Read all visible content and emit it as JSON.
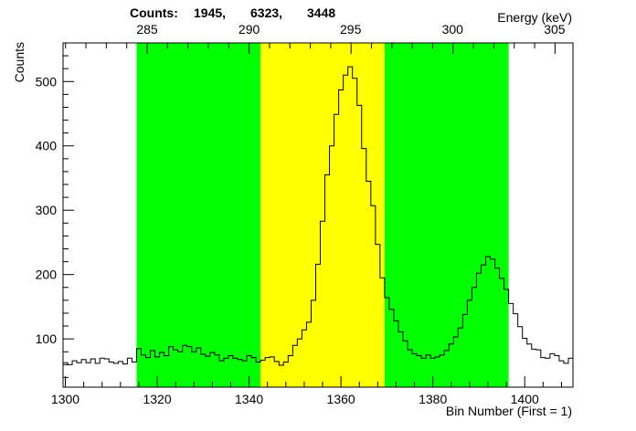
{
  "chart_data": {
    "type": "histogram",
    "title_prefix": "Counts:",
    "counts": [
      "1945,",
      "6323,",
      "3448"
    ],
    "xlabel": "Bin Number (First = 1)",
    "ylabel": "Counts",
    "x2label": "Energy (keV)",
    "xlim": [
      1299.5,
      1410.5
    ],
    "ylim": [
      25,
      560
    ],
    "x_ticks": [
      "1300",
      "1320",
      "1340",
      "1360",
      "1380",
      "1400"
    ],
    "y_ticks": [
      "100",
      "200",
      "300",
      "400",
      "500"
    ],
    "energy_ticks": [
      "285",
      "290",
      "295",
      "300",
      "305"
    ],
    "energy_tick_bins": [
      1317.8,
      1340.0,
      1362.1,
      1384.3,
      1406.5
    ],
    "regions": [
      {
        "x0": 1315.5,
        "x1": 1342.5,
        "color": "#00ff00"
      },
      {
        "x0": 1342.5,
        "x1": 1369.5,
        "color": "#ffff00"
      },
      {
        "x0": 1369.5,
        "x1": 1396.5,
        "color": "#00ff00"
      }
    ],
    "x_start": 1299.5,
    "bin_width": 1,
    "values": [
      63,
      60,
      66,
      63,
      68,
      63,
      69,
      62,
      70,
      69,
      64,
      62,
      65,
      61,
      70,
      64,
      85,
      75,
      71,
      82,
      72,
      79,
      74,
      88,
      83,
      80,
      90,
      88,
      80,
      86,
      76,
      73,
      79,
      75,
      66,
      70,
      74,
      70,
      68,
      66,
      74,
      71,
      64,
      67,
      71,
      72,
      65,
      59,
      64,
      74,
      90,
      100,
      114,
      126,
      160,
      216,
      283,
      355,
      400,
      449,
      487,
      510,
      523,
      505,
      463,
      396,
      345,
      307,
      247,
      195,
      164,
      146,
      128,
      111,
      97,
      83,
      77,
      74,
      70,
      75,
      70,
      72,
      75,
      82,
      92,
      103,
      117,
      138,
      160,
      180,
      202,
      215,
      228,
      224,
      210,
      194,
      177,
      155,
      139,
      119,
      101,
      92,
      84,
      83,
      71,
      70,
      77,
      74,
      66,
      62,
      70
    ],
    "colors": {
      "line": "#000000",
      "background": "#ffffff"
    }
  }
}
